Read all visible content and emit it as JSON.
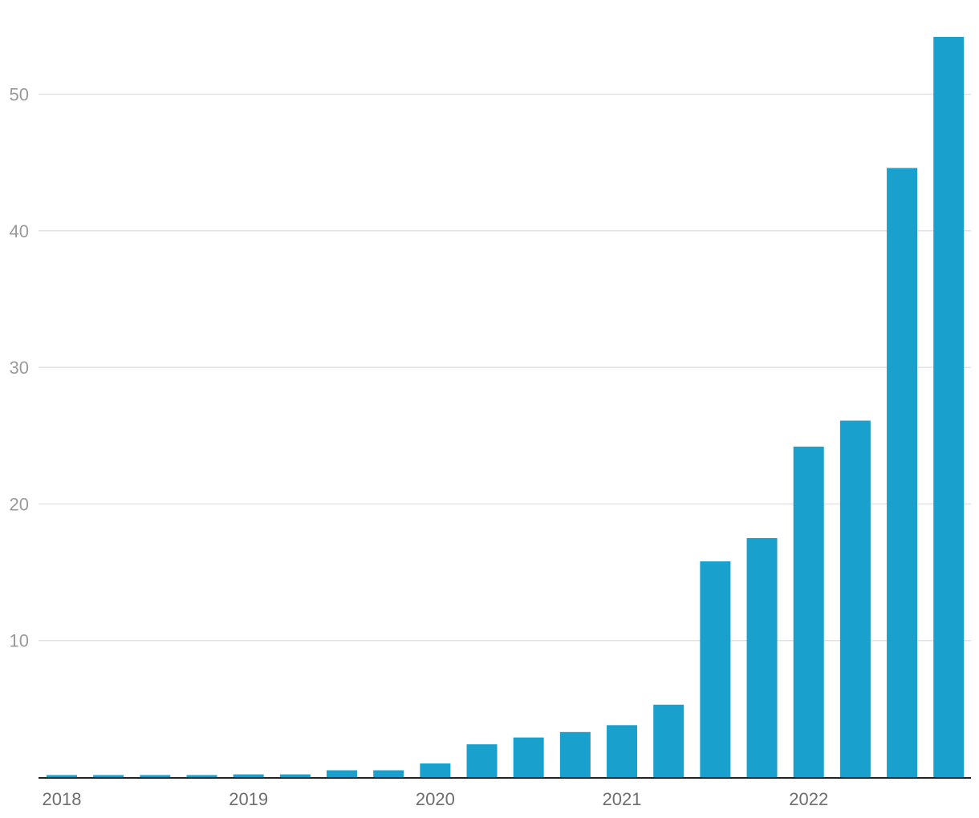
{
  "chart_data": {
    "type": "bar",
    "title": "",
    "xlabel": "",
    "ylabel": "",
    "ylim": [
      0,
      54
    ],
    "yticks": [
      10,
      20,
      30,
      40,
      50
    ],
    "xtick_labels": [
      "2018",
      "2019",
      "2020",
      "2021",
      "2022"
    ],
    "grid": true,
    "legend": "none",
    "bar_color": "#1aa0cc",
    "categories": [
      "2018 Q1",
      "2018 Q2",
      "2018 Q3",
      "2018 Q4",
      "2019 Q1",
      "2019 Q2",
      "2019 Q3",
      "2019 Q4",
      "2020 Q1",
      "2020 Q2",
      "2020 Q3",
      "2020 Q4",
      "2021 Q1",
      "2021 Q2",
      "2021 Q3",
      "2021 Q4",
      "2022 Q1",
      "2022 Q2",
      "2022 Q3",
      "2022 Q4"
    ],
    "values": [
      0.15,
      0.15,
      0.15,
      0.15,
      0.2,
      0.2,
      0.5,
      0.5,
      1.0,
      2.4,
      2.9,
      3.3,
      3.8,
      5.3,
      15.8,
      17.5,
      24.2,
      26.1,
      44.6,
      54.2
    ]
  }
}
